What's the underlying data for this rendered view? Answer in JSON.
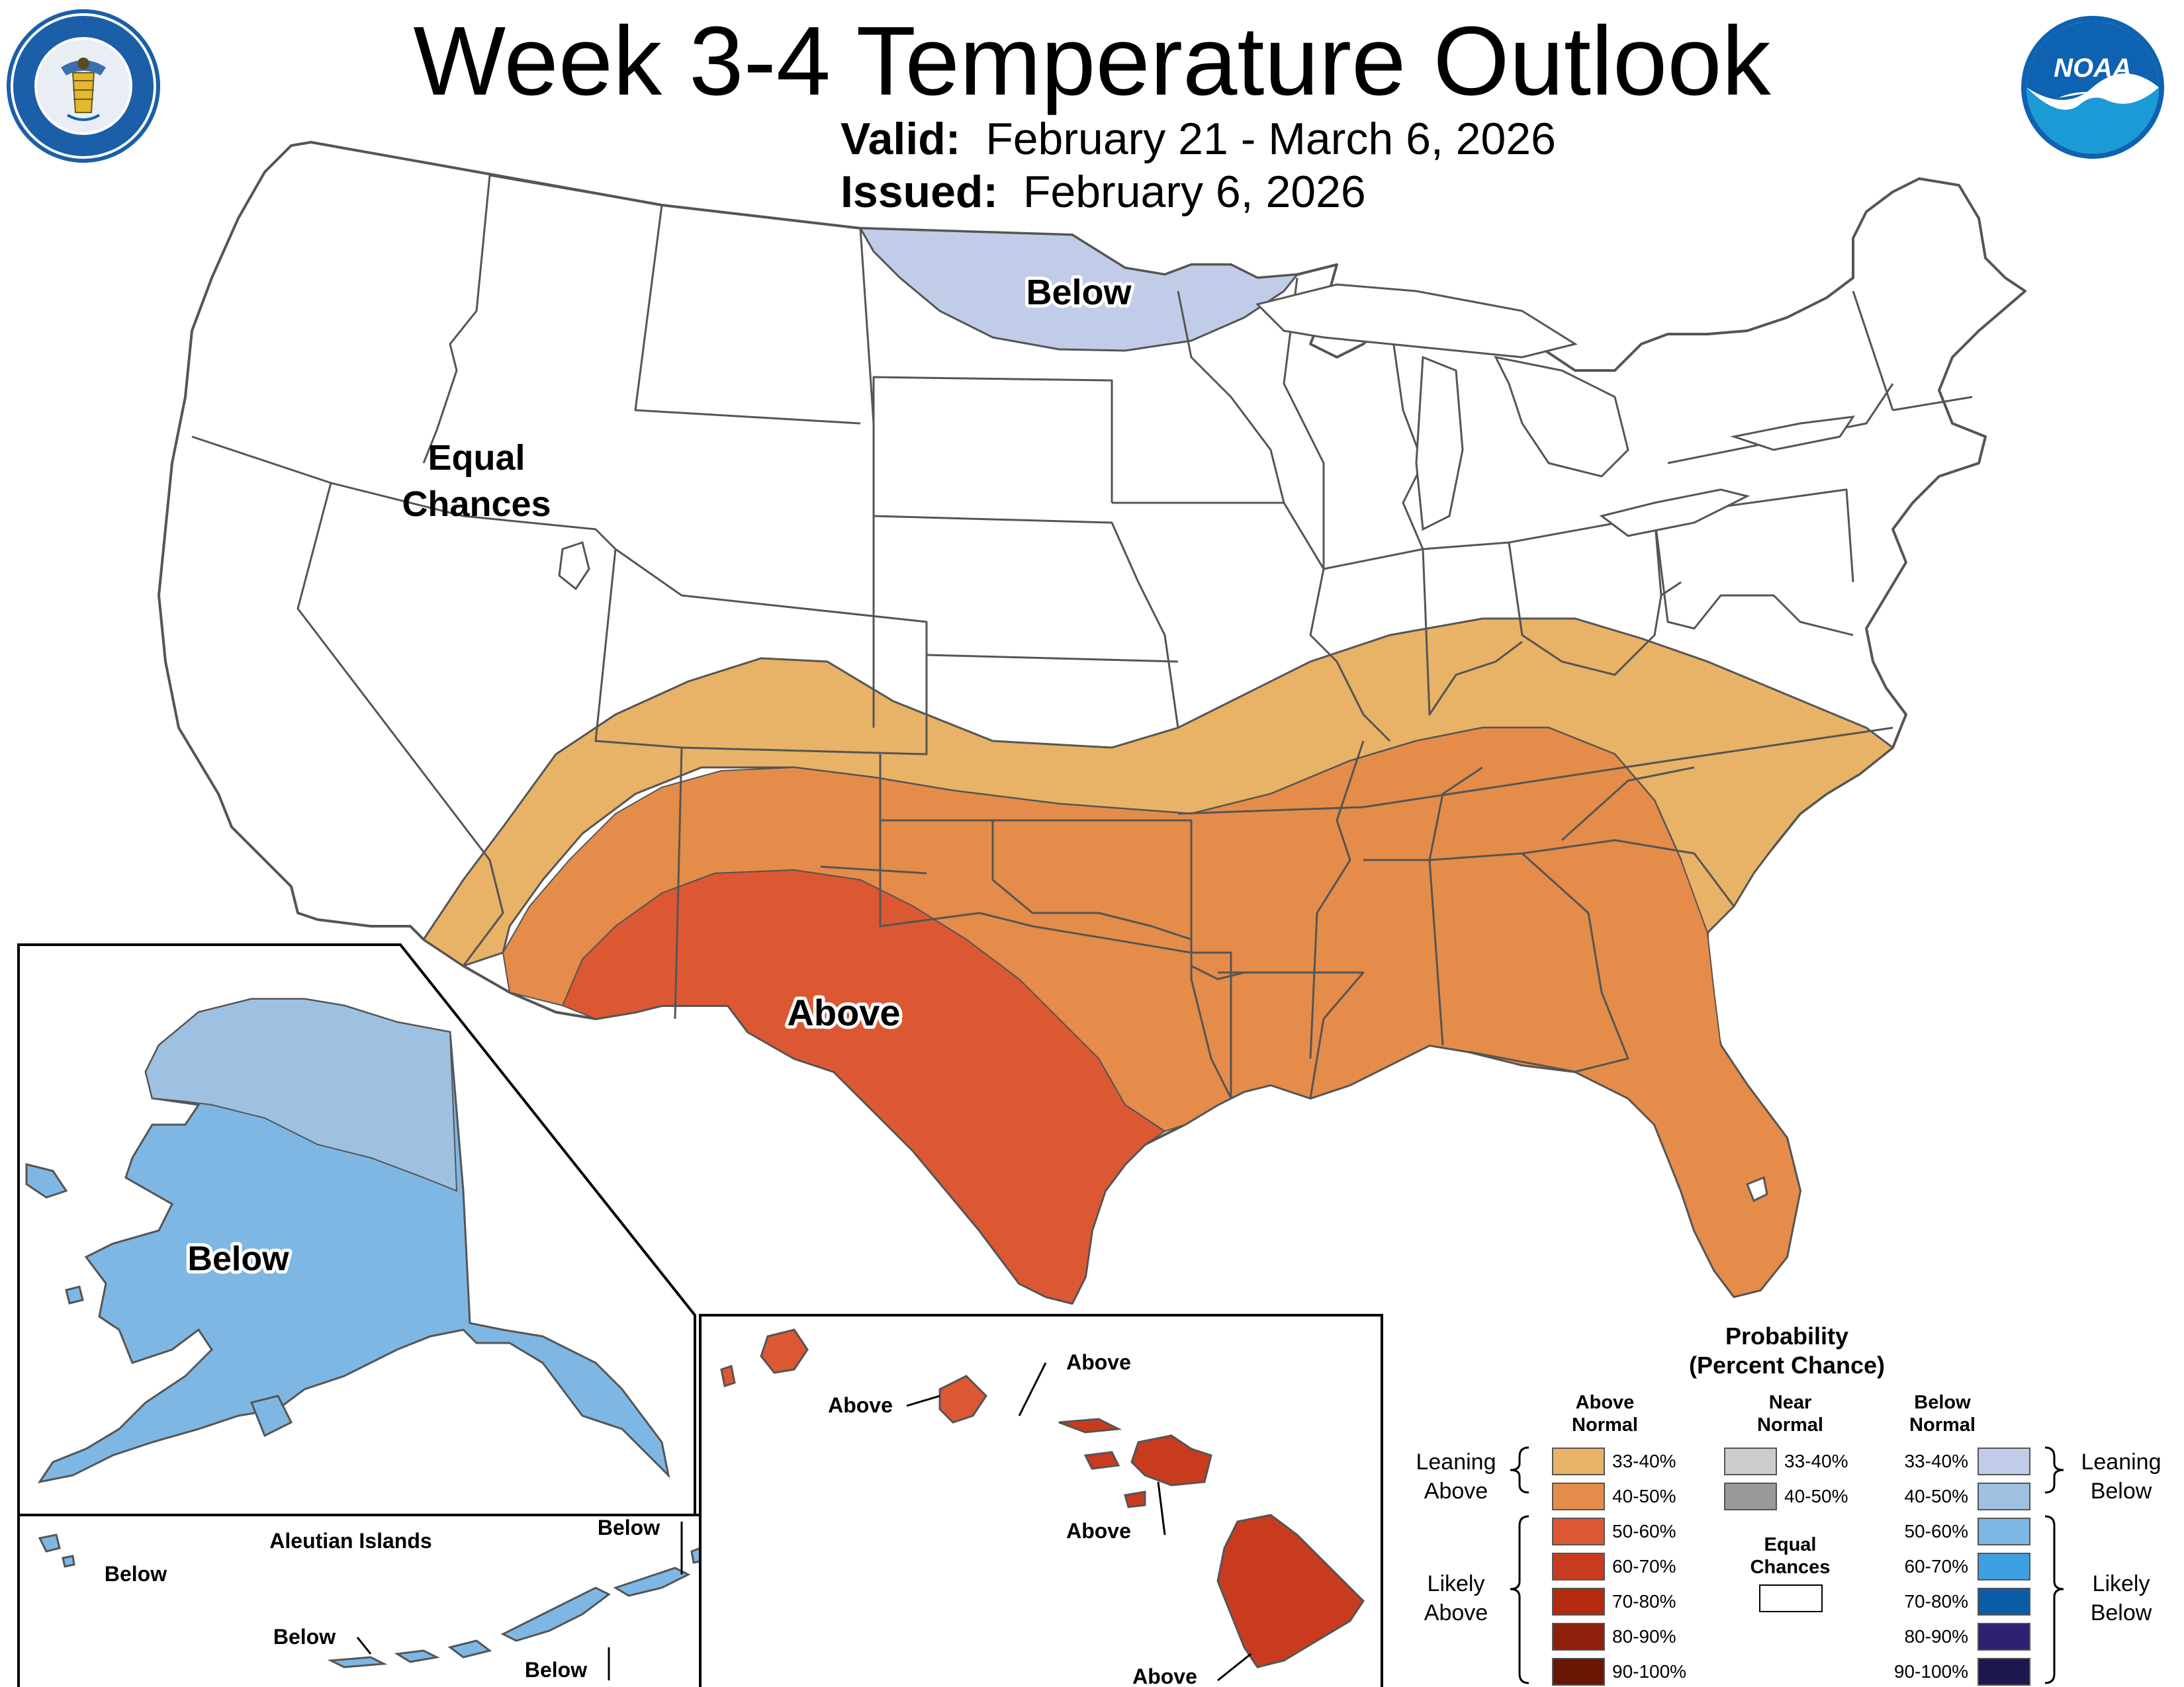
{
  "header": {
    "title": "Week 3-4 Temperature Outlook",
    "valid_label": "Valid:",
    "valid_value": "February 21 - March 6, 2026",
    "issued_label": "Issued:",
    "issued_value": "February 6, 2026"
  },
  "logos": {
    "left": "DEPARTMENT OF COMMERCE · UNITED STATES OF AMERICA",
    "right": "NOAA"
  },
  "map_labels": {
    "conus_below": "Below",
    "conus_equal_1": "Equal",
    "conus_equal_2": "Chances",
    "conus_above": "Above",
    "alaska_below": "Below",
    "aleutian_title": "Aleutian Islands",
    "aleutian_below_1": "Below",
    "aleutian_below_2": "Below",
    "aleutian_below_3": "Below",
    "aleutian_below_4": "Below",
    "hawaii_above_1": "Above",
    "hawaii_above_2": "Above",
    "hawaii_above_3": "Above",
    "hawaii_above_4": "Above"
  },
  "legend": {
    "title_1": "Probability",
    "title_2": "(Percent Chance)",
    "above_header_1": "Above",
    "above_header_2": "Normal",
    "near_header_1": "Near",
    "near_header_2": "Normal",
    "below_header_1": "Below",
    "below_header_2": "Normal",
    "above_items": [
      {
        "label": "33-40%",
        "color": "#e8b366"
      },
      {
        "label": "40-50%",
        "color": "#e58c4a"
      },
      {
        "label": "50-60%",
        "color": "#dc5832"
      },
      {
        "label": "60-70%",
        "color": "#c93b1f"
      },
      {
        "label": "70-80%",
        "color": "#b32a0e"
      },
      {
        "label": "80-90%",
        "color": "#8e1f0b"
      },
      {
        "label": "90-100%",
        "color": "#6a1605"
      }
    ],
    "near_items": [
      {
        "label": "33-40%",
        "color": "#cccccc"
      },
      {
        "label": "40-50%",
        "color": "#999999"
      }
    ],
    "equal_1": "Equal",
    "equal_2": "Chances",
    "below_items": [
      {
        "label": "33-40%",
        "color": "#c1cde8"
      },
      {
        "label": "40-50%",
        "color": "#9fc1e1"
      },
      {
        "label": "50-60%",
        "color": "#7eb7e3"
      },
      {
        "label": "60-70%",
        "color": "#3da0e0"
      },
      {
        "label": "70-80%",
        "color": "#0a5ca6"
      },
      {
        "label": "80-90%",
        "color": "#2e2073"
      },
      {
        "label": "90-100%",
        "color": "#1c1850"
      }
    ],
    "leaning_above_1": "Leaning",
    "leaning_above_2": "Above",
    "likely_above_1": "Likely",
    "likely_above_2": "Above",
    "leaning_below_1": "Leaning",
    "leaning_below_2": "Below",
    "likely_below_1": "Likely",
    "likely_below_2": "Below"
  }
}
